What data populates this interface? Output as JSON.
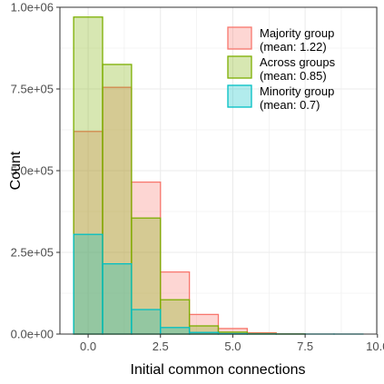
{
  "chart_data": {
    "type": "bar",
    "subtype": "overlapping-histogram",
    "title": "",
    "xlabel": "Initial common connections",
    "ylabel": "Count",
    "xlim": [
      -0.975,
      9.975
    ],
    "ylim": [
      0,
      1000000
    ],
    "xticks": [
      0.0,
      2.5,
      5.0,
      7.5,
      10.0
    ],
    "xtick_labels": [
      "0.0",
      "2.5",
      "5.0",
      "7.5",
      "10.0"
    ],
    "yticks": [
      0,
      250000,
      500000,
      750000,
      1000000
    ],
    "ytick_labels": [
      "0.0e+00",
      "2.5e+05",
      "5.0e+05",
      "7.5e+05",
      "1.0e+06"
    ],
    "grid": true,
    "legend_position": "top-right",
    "bins": [
      0,
      1,
      2,
      3,
      4,
      5,
      6,
      7,
      8,
      9
    ],
    "bin_width": 1,
    "series": [
      {
        "name": "Majority group",
        "mean_label": "(mean: 1.22)",
        "stroke": "#F8766D",
        "fill": "#F8766D",
        "values": [
          620000,
          755000,
          465000,
          190000,
          60000,
          17000,
          4000,
          1000,
          0,
          0
        ]
      },
      {
        "name": "Across groups",
        "mean_label": "(mean: 0.85)",
        "stroke": "#7CAE00",
        "fill": "#7CAE00",
        "values": [
          970000,
          825000,
          355000,
          105000,
          25000,
          6000,
          1500,
          400,
          0,
          0
        ]
      },
      {
        "name": "Minority group",
        "mean_label": "(mean: 0.7)",
        "stroke": "#00BFC4",
        "fill": "#00BFC4",
        "values": [
          305000,
          215000,
          75000,
          20000,
          5000,
          1500,
          500,
          200,
          100,
          50
        ]
      }
    ]
  }
}
